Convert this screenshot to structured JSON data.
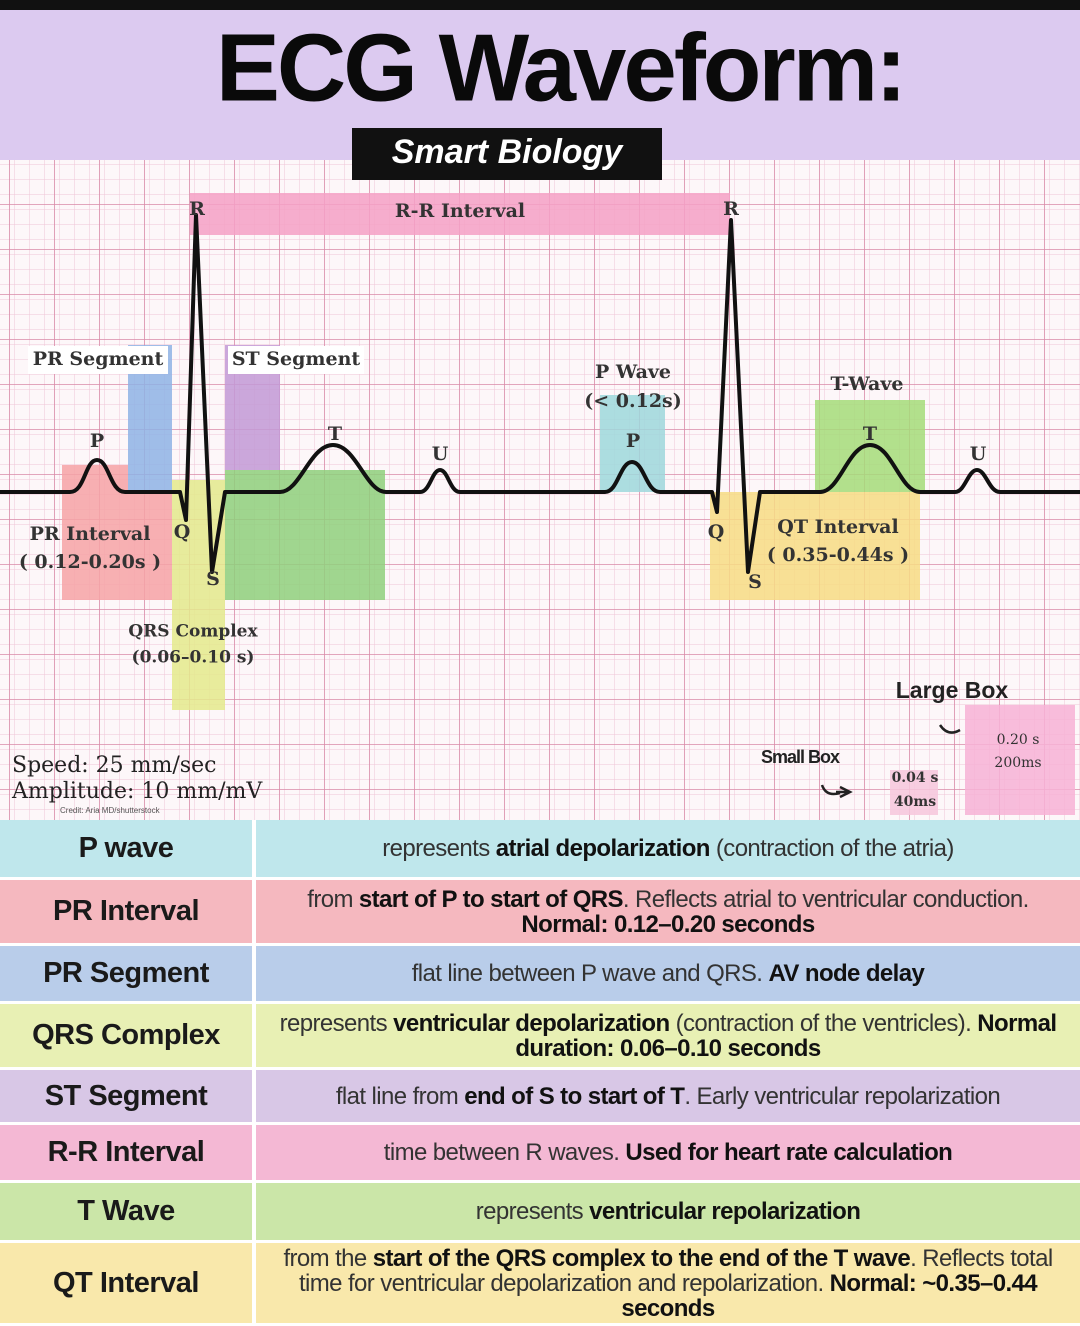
{
  "header": {
    "title": "ECG Waveform:",
    "subtitle": "Smart Biology"
  },
  "diagram": {
    "r_left": "R",
    "rr_interval": "R-R Interval",
    "r_right": "R",
    "pr_segment": "PR Segment",
    "st_segment": "ST Segment",
    "p_wave": "P Wave",
    "p_wave_duration": "(< 0.12s)",
    "t_wave": "T-Wave",
    "p_left": "P",
    "t_left": "T",
    "u_left": "U",
    "p_right": "P",
    "t_right": "T",
    "u_right": "U",
    "q_left": "Q",
    "s_left": "S",
    "q_right": "Q",
    "s_right": "S",
    "pr_interval": "PR Interval",
    "pr_interval_duration": "( 0.12-0.20s )",
    "qrs_complex": "QRS Complex",
    "qrs_duration": "(0.06–0.10 s)",
    "qt_interval": "QT Interval",
    "qt_duration": "( 0.35-0.44s )",
    "large_box": "Large Box",
    "large_box_seconds": "0.20 s",
    "large_box_ms": "200ms",
    "small_box": "Small Box",
    "small_box_seconds": "0.04 s",
    "small_box_ms": "40ms",
    "speed": "Speed: 25 mm/sec",
    "amplitude": "Amplitude: 10 mm/mV",
    "credit": "Credit: Aria MD/shutterstock"
  },
  "table": {
    "rows": [
      {
        "term": "P wave",
        "color": "#bfe7ec",
        "description": [
          {
            "text": "represents "
          },
          {
            "text": "atrial depolarization",
            "bold": true
          },
          {
            "text": " (contraction of the atria)"
          }
        ]
      },
      {
        "term": "PR Interval",
        "color": "#f5b8bf",
        "description": [
          {
            "text": "from "
          },
          {
            "text": "start of P to start of QRS",
            "bold": true
          },
          {
            "text": ". Reflects atrial to ventricular conduction. "
          },
          {
            "text": "Normal: 0.12–0.20 seconds",
            "bold": true
          }
        ]
      },
      {
        "term": "PR Segment",
        "color": "#b9cdea",
        "description": [
          {
            "text": "flat line between P wave and QRS. "
          },
          {
            "text": "AV node delay",
            "bold": true
          }
        ]
      },
      {
        "term": "QRS Complex",
        "color": "#e8f0b4",
        "description": [
          {
            "text": "represents "
          },
          {
            "text": "ventricular depolarization",
            "bold": true
          },
          {
            "text": " (contraction of the ventricles). "
          },
          {
            "text": "Normal duration: 0.06–0.10 seconds",
            "bold": true
          }
        ]
      },
      {
        "term": "ST Segment",
        "color": "#d8c7e6",
        "description": [
          {
            "text": "flat line from "
          },
          {
            "text": "end of S to start of T",
            "bold": true
          },
          {
            "text": ". Early ventricular repolarization"
          }
        ]
      },
      {
        "term": "R-R Interval",
        "color": "#f4b8d4",
        "description": [
          {
            "text": "time between R waves. "
          },
          {
            "text": "Used for heart rate calculation",
            "bold": true
          }
        ]
      },
      {
        "term": "T Wave",
        "color": "#cbe6a8",
        "description": [
          {
            "text": "represents "
          },
          {
            "text": "ventricular repolarization",
            "bold": true
          }
        ]
      },
      {
        "term": "QT Interval",
        "color": "#f9e8ab",
        "description": [
          {
            "text": "from the "
          },
          {
            "text": "start of the QRS complex to the end of the T wave",
            "bold": true
          },
          {
            "text": ". Reflects total time for ventricular depolarization and repolarization. "
          },
          {
            "text": "Normal: ~0.35–0.44 seconds",
            "bold": true
          }
        ]
      }
    ]
  }
}
